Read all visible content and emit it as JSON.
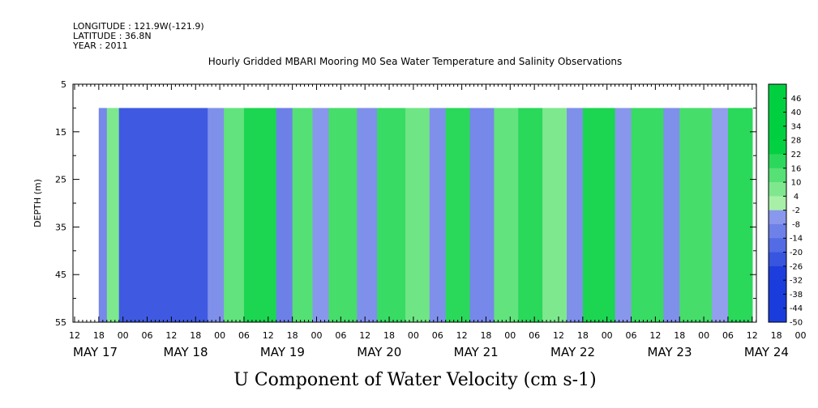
{
  "header": {
    "longitude": "LONGITUDE : 121.9W(-121.9)",
    "latitude": "LATITUDE : 36.8N",
    "year": "YEAR : 2011"
  },
  "chart_data": {
    "type": "heatmap",
    "title": "Hourly Gridded MBARI Mooring M0 Sea Water Temperature and Salinity Observations",
    "xlabel": "U Component of Water Velocity (cm s-1)",
    "ylabel": "DEPTH (m)",
    "ylim": [
      5,
      55
    ],
    "y_reversed": true,
    "y_ticks": [
      5,
      15,
      25,
      35,
      45,
      55
    ],
    "x_hour_ticks": [
      "12",
      "18",
      "00",
      "06",
      "12",
      "18",
      "00",
      "06",
      "12",
      "18",
      "00",
      "06",
      "12",
      "18",
      "00",
      "06",
      "12",
      "18",
      "00",
      "06",
      "12",
      "18",
      "00",
      "06",
      "12",
      "18",
      "00",
      "06",
      "12",
      "18",
      "00",
      "06",
      "12"
    ],
    "x_date_labels": [
      "MAY 17",
      "MAY 18",
      "MAY 19",
      "MAY 20",
      "MAY 21",
      "MAY 22",
      "MAY 23",
      "MAY 24"
    ],
    "colorbar_ticks": [
      "46",
      "40",
      "34",
      "28",
      "22",
      "16",
      "10",
      "4",
      "-2",
      "-8",
      "-14",
      "-20",
      "-26",
      "-32",
      "-38",
      "-44",
      "-50"
    ],
    "colorbar_range": [
      -50,
      50
    ],
    "colors": {
      "negative_strong": "#1a3cdc",
      "negative_weak": "#a4aef0",
      "positive_weak": "#a8f0a8",
      "positive_strong": "#00d040"
    },
    "data_depth_range": [
      10,
      55
    ],
    "data_time_start": "MAY 17 18",
    "data_time_end": "MAY 24 12",
    "u_velocity_bands": [
      {
        "start": "MAY 17 18",
        "end": "MAY 17 20",
        "u": -10
      },
      {
        "start": "MAY 17 20",
        "end": "MAY 17 23",
        "u": 6
      },
      {
        "start": "MAY 17 23",
        "end": "MAY 18 21",
        "u": -22
      },
      {
        "start": "MAY 18 21",
        "end": "MAY 19 01",
        "u": -8
      },
      {
        "start": "MAY 19 01",
        "end": "MAY 19 06",
        "u": 10
      },
      {
        "start": "MAY 19 06",
        "end": "MAY 19 14",
        "u": 20
      },
      {
        "start": "MAY 19 14",
        "end": "MAY 19 18",
        "u": -12
      },
      {
        "start": "MAY 19 18",
        "end": "MAY 19 23",
        "u": 12
      },
      {
        "start": "MAY 19 23",
        "end": "MAY 20 03",
        "u": -6
      },
      {
        "start": "MAY 20 03",
        "end": "MAY 20 10",
        "u": 14
      },
      {
        "start": "MAY 20 10",
        "end": "MAY 20 15",
        "u": -8
      },
      {
        "start": "MAY 20 15",
        "end": "MAY 20 22",
        "u": 16
      },
      {
        "start": "MAY 20 22",
        "end": "MAY 21 04",
        "u": 8
      },
      {
        "start": "MAY 21 04",
        "end": "MAY 21 08",
        "u": -8
      },
      {
        "start": "MAY 21 08",
        "end": "MAY 21 14",
        "u": 18
      },
      {
        "start": "MAY 21 14",
        "end": "MAY 21 20",
        "u": -10
      },
      {
        "start": "MAY 21 20",
        "end": "MAY 22 02",
        "u": 10
      },
      {
        "start": "MAY 22 02",
        "end": "MAY 22 08",
        "u": 18
      },
      {
        "start": "MAY 22 08",
        "end": "MAY 22 14",
        "u": 6
      },
      {
        "start": "MAY 22 14",
        "end": "MAY 22 18",
        "u": -8
      },
      {
        "start": "MAY 22 18",
        "end": "MAY 23 02",
        "u": 20
      },
      {
        "start": "MAY 23 02",
        "end": "MAY 23 06",
        "u": -6
      },
      {
        "start": "MAY 23 06",
        "end": "MAY 23 14",
        "u": 16
      },
      {
        "start": "MAY 23 14",
        "end": "MAY 23 18",
        "u": -8
      },
      {
        "start": "MAY 23 18",
        "end": "MAY 24 02",
        "u": 14
      },
      {
        "start": "MAY 24 02",
        "end": "MAY 24 06",
        "u": -4
      },
      {
        "start": "MAY 24 06",
        "end": "MAY 24 12",
        "u": 18
      }
    ]
  }
}
